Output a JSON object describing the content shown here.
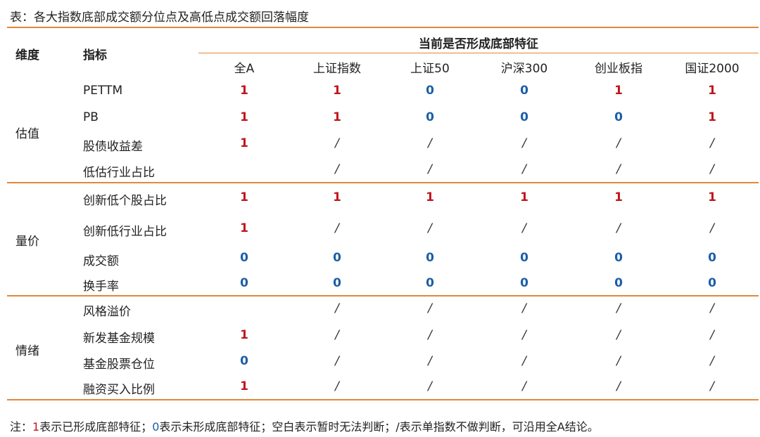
{
  "caption": "表：各大指数底部成交额分位点及高低点成交额回落幅度",
  "header": {
    "dimension": "维度",
    "indicator": "指标",
    "group": "当前是否形成底部特征",
    "columns": [
      "全A",
      "上证指数",
      "上证50",
      "沪深300",
      "创业板指",
      "国证2000"
    ]
  },
  "sections": [
    {
      "dimension": "估值",
      "rows": [
        {
          "indicator": "PETTM",
          "values": [
            "1",
            "1",
            "0",
            "0",
            "1",
            "1"
          ]
        },
        {
          "indicator": "PB",
          "values": [
            "1",
            "1",
            "0",
            "0",
            "0",
            "1"
          ]
        },
        {
          "indicator": "股债收益差",
          "values": [
            "1",
            "/",
            "/",
            "/",
            "/",
            "/"
          ]
        },
        {
          "indicator": "低估行业占比",
          "values": [
            "",
            "/",
            "/",
            "/",
            "/",
            "/"
          ]
        }
      ]
    },
    {
      "dimension": "量价",
      "rows": [
        {
          "indicator": "创新低个股占比",
          "values": [
            "1",
            "1",
            "1",
            "1",
            "1",
            "1"
          ]
        },
        {
          "indicator": "创新低行业占比",
          "values": [
            "1",
            "/",
            "/",
            "/",
            "/",
            "/"
          ]
        },
        {
          "indicator": "成交额",
          "values": [
            "0",
            "0",
            "0",
            "0",
            "0",
            "0"
          ]
        },
        {
          "indicator": "换手率",
          "values": [
            "0",
            "0",
            "0",
            "0",
            "0",
            "0"
          ]
        }
      ]
    },
    {
      "dimension": "情绪",
      "rows": [
        {
          "indicator": "风格溢价",
          "values": [
            "",
            "/",
            "/",
            "/",
            "/",
            "/"
          ]
        },
        {
          "indicator": "新发基金规模",
          "values": [
            "1",
            "/",
            "/",
            "/",
            "/",
            "/"
          ]
        },
        {
          "indicator": "基金股票仓位",
          "values": [
            "0",
            "/",
            "/",
            "/",
            "/",
            "/"
          ]
        },
        {
          "indicator": "融资买入比例",
          "values": [
            "1",
            "/",
            "/",
            "/",
            "/",
            "/"
          ]
        }
      ]
    }
  ],
  "note": {
    "prefix": "注：",
    "one": "1",
    "one_text": "表示已形成底部特征；",
    "zero": "0",
    "zero_text": "表示未形成底部特征；空白表示暂时无法判断；/表示单指数不做判断，可沿用全A结论。"
  },
  "colors": {
    "rule": "#e2873a",
    "one": "#c0161d",
    "zero": "#1b5fa5"
  }
}
